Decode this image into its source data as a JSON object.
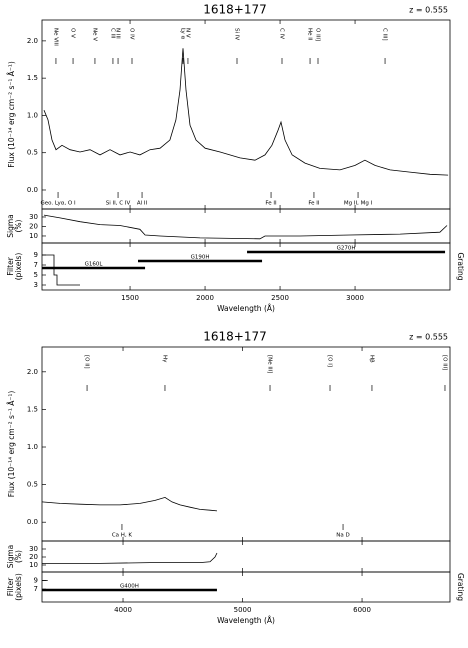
{
  "chart_data": [
    {
      "type": "line",
      "title": "1618+177",
      "redshift_label": "z = 0.555",
      "xlabel": "Wavelength (Å)",
      "xlim": [
        913,
        3633
      ],
      "xticks": [
        1500,
        2000,
        2500,
        3000
      ],
      "subplots": [
        {
          "ylabel": [
            "Flux (10⁻¹⁴ erg cm⁻² s⁻¹ Å⁻¹)"
          ],
          "ylim": [
            -0.255,
            2.28
          ],
          "yticks": [
            {
              "value": 0,
              "label": "0.0"
            },
            0.5,
            {
              "value": 1,
              "label": "1.0"
            },
            1.5,
            {
              "value": 2,
              "label": "2.0"
            }
          ],
          "x": [
            926,
            953,
            980,
            1006,
            1046,
            1100,
            1166,
            1233,
            1300,
            1366,
            1433,
            1500,
            1566,
            1633,
            1700,
            1766,
            1806,
            1833,
            1853,
            1873,
            1900,
            1940,
            2000,
            2100,
            2233,
            2333,
            2400,
            2446,
            2486,
            2506,
            2533,
            2580,
            2666,
            2766,
            2900,
            3000,
            3066,
            3133,
            3233,
            3366,
            3500,
            3620
          ],
          "values": [
            1.07,
            0.94,
            0.67,
            0.54,
            0.6,
            0.54,
            0.51,
            0.54,
            0.47,
            0.54,
            0.47,
            0.51,
            0.47,
            0.54,
            0.56,
            0.67,
            0.94,
            1.34,
            1.9,
            1.34,
            0.87,
            0.67,
            0.56,
            0.51,
            0.43,
            0.4,
            0.47,
            0.6,
            0.8,
            0.91,
            0.67,
            0.47,
            0.36,
            0.29,
            0.27,
            0.33,
            0.4,
            0.33,
            0.27,
            0.24,
            0.21,
            0.2
          ],
          "line_ids": [
            {
              "label": "Ne VIII",
              "x": 1006
            },
            {
              "label": "O V",
              "x": 1120
            },
            {
              "label": "Ne V",
              "x": 1266
            },
            {
              "label": "C III",
              "x": 1386
            },
            {
              "label": "N III",
              "x": 1420
            },
            {
              "label": "O IV",
              "x": 1513
            },
            {
              "label": "Ly α",
              "x": 1853
            },
            {
              "label": "N V",
              "x": 1886
            },
            {
              "label": "Si IV",
              "x": 2213
            },
            {
              "label": "C IV",
              "x": 2513
            },
            {
              "label": "He II",
              "x": 2700
            },
            {
              "label": "O III]",
              "x": 2753
            },
            {
              "label": "C III]",
              "x": 3200
            }
          ],
          "absorption_ids": [
            {
              "label": "Geo. Lyα, O I",
              "x": 1020
            },
            {
              "label": "Si II, C IV",
              "x": 1420
            },
            {
              "label": "Al II",
              "x": 1580
            },
            {
              "label": "Fe II",
              "x": 2440
            },
            {
              "label": "Fe II",
              "x": 2726
            },
            {
              "label": "Mg II, Mg I",
              "x": 3020
            }
          ]
        },
        {
          "ylabel": [
            "Sigma",
            "(%)"
          ],
          "ylim": [
            2.6,
            38.4
          ],
          "yticks": [
            10,
            20,
            30
          ],
          "x": [
            926,
            1033,
            1166,
            1300,
            1433,
            1566,
            1600,
            1700,
            1966,
            2366,
            2400,
            2633,
            2966,
            3300,
            3566,
            3613
          ],
          "values": [
            32,
            29,
            25,
            22,
            21,
            17,
            11,
            10,
            8,
            7,
            10,
            10,
            11,
            12,
            14,
            21
          ]
        },
        {
          "ylabel": [
            "Filter",
            "(pixels)"
          ],
          "right_label": "Grating",
          "ylim": [
            2,
            11.4
          ],
          "yticks": [
            3,
            5,
            7,
            9
          ],
          "x": [
            913,
            993,
            993,
            1013,
            1013,
            1166
          ],
          "values": [
            9,
            9,
            5,
            5,
            3,
            3
          ],
          "gratings": [
            {
              "name": "G160L",
              "range": [
                913,
                1600
              ],
              "level": 6.4
            },
            {
              "name": "G190H",
              "range": [
                1553,
                2380
              ],
              "level": 7.8
            },
            {
              "name": "G270H",
              "range": [
                2280,
                3600
              ],
              "level": 9.6
            }
          ]
        }
      ]
    },
    {
      "type": "line",
      "title": "1618+177",
      "redshift_label": "z = 0.555",
      "xlabel": "Wavelength (Å)",
      "xlim": [
        3322,
        6736
      ],
      "xticks": [
        4000,
        5000,
        6000
      ],
      "subplots": [
        {
          "ylabel": [
            "Flux (10⁻¹⁴ erg cm⁻² s⁻¹ Å⁻¹)"
          ],
          "ylim": [
            -0.25,
            2.33
          ],
          "yticks": [
            {
              "value": 0,
              "label": "0.0"
            },
            0.5,
            {
              "value": 1,
              "label": "1.0"
            },
            1.5,
            {
              "value": 2,
              "label": "2.0"
            }
          ],
          "x": [
            3322,
            3473,
            3640,
            3807,
            3975,
            4142,
            4268,
            4351,
            4410,
            4477,
            4560,
            4644,
            4728,
            4786
          ],
          "values": [
            0.27,
            0.25,
            0.24,
            0.23,
            0.23,
            0.25,
            0.29,
            0.33,
            0.27,
            0.23,
            0.2,
            0.17,
            0.16,
            0.15
          ],
          "line_ids": [
            {
              "label": "[O II]",
              "x": 3699
            },
            {
              "label": "Hγ",
              "x": 4351
            },
            {
              "label": "[Ne III]",
              "x": 5230
            },
            {
              "label": "[O I]",
              "x": 5732
            },
            {
              "label": "Hβ",
              "x": 6083
            },
            {
              "label": "[O III]",
              "x": 6694
            }
          ],
          "absorption_ids": [
            {
              "label": "Ca H, K",
              "x": 3991
            },
            {
              "label": "Na D",
              "x": 5841
            }
          ]
        },
        {
          "ylabel": [
            "Sigma",
            "(%)"
          ],
          "ylim": [
            1.25,
            40
          ],
          "yticks": [
            10,
            20,
            30
          ],
          "x": [
            3322,
            3807,
            4226,
            4644,
            4728,
            4770,
            4786
          ],
          "values": [
            12,
            12,
            13,
            13,
            14,
            20,
            25
          ]
        },
        {
          "ylabel": [
            "Filter",
            "(pixels)"
          ],
          "right_label": "Grating",
          "ylim": [
            4,
            11
          ],
          "yticks": [
            7,
            9
          ],
          "x": [
            3322,
            3370
          ],
          "values": [
            9,
            9
          ],
          "gratings": [
            {
              "name": "G400H",
              "range": [
                3322,
                4786
              ],
              "level": 6.8
            }
          ]
        }
      ]
    }
  ]
}
